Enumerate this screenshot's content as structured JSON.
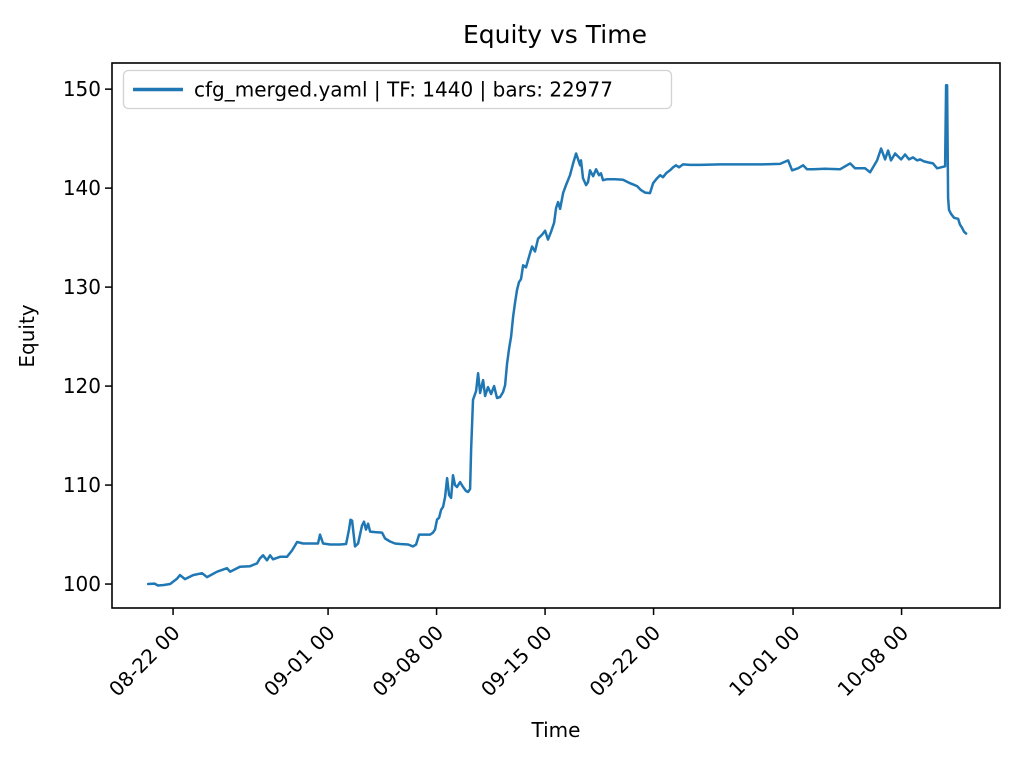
{
  "chart_data": {
    "type": "line",
    "title": "Equity vs Time",
    "xlabel": "Time",
    "ylabel": "Equity",
    "grid": false,
    "legend_position": "upper left",
    "legend": [
      {
        "label": "cfg_merged.yaml | TF: 1440 | bars: 22977",
        "color": "#1f77b4"
      }
    ],
    "colors": {
      "line": "#1f77b4",
      "spine": "#000000",
      "legend_border": "#d2d2d2",
      "background": "#ffffff"
    },
    "t_unit": "days since 08-22 00:00",
    "xlim": [
      -3.94,
      53.35
    ],
    "ylim": [
      97.58,
      152.64
    ],
    "yticks": [
      100,
      110,
      120,
      130,
      140,
      150
    ],
    "xticks": [
      {
        "t": 0,
        "label": "08-22 00"
      },
      {
        "t": 10,
        "label": "09-01 00"
      },
      {
        "t": 17,
        "label": "09-08 00"
      },
      {
        "t": 24,
        "label": "09-15 00"
      },
      {
        "t": 31,
        "label": "09-22 00"
      },
      {
        "t": 40,
        "label": "10-01 00"
      },
      {
        "t": 47,
        "label": "10-08 00"
      }
    ],
    "series": [
      {
        "name": "cfg_merged.yaml | TF: 1440 | bars: 22977",
        "color": "#1f77b4",
        "points": [
          [
            -1.61,
            100.0
          ],
          [
            -1.2,
            100.05
          ],
          [
            -0.97,
            99.85
          ],
          [
            -0.6,
            99.9
          ],
          [
            -0.19,
            100.0
          ],
          [
            0.26,
            100.55
          ],
          [
            0.45,
            100.9
          ],
          [
            0.77,
            100.5
          ],
          [
            1.29,
            100.9
          ],
          [
            1.87,
            101.1
          ],
          [
            2.19,
            100.7
          ],
          [
            2.84,
            101.25
          ],
          [
            3.48,
            101.6
          ],
          [
            3.68,
            101.25
          ],
          [
            4.32,
            101.75
          ],
          [
            4.97,
            101.8
          ],
          [
            5.42,
            102.1
          ],
          [
            5.61,
            102.6
          ],
          [
            5.81,
            102.9
          ],
          [
            6.06,
            102.4
          ],
          [
            6.26,
            102.9
          ],
          [
            6.45,
            102.5
          ],
          [
            6.9,
            102.75
          ],
          [
            7.35,
            102.75
          ],
          [
            7.68,
            103.4
          ],
          [
            8.0,
            104.25
          ],
          [
            8.39,
            104.1
          ],
          [
            8.84,
            104.1
          ],
          [
            9.35,
            104.1
          ],
          [
            9.48,
            105.0
          ],
          [
            9.68,
            104.1
          ],
          [
            10.13,
            104.0
          ],
          [
            10.77,
            104.0
          ],
          [
            11.16,
            104.05
          ],
          [
            11.35,
            105.5
          ],
          [
            11.45,
            106.5
          ],
          [
            11.55,
            106.4
          ],
          [
            11.74,
            103.8
          ],
          [
            11.94,
            104.1
          ],
          [
            12.19,
            105.9
          ],
          [
            12.32,
            106.3
          ],
          [
            12.45,
            105.5
          ],
          [
            12.58,
            106.1
          ],
          [
            12.71,
            105.3
          ],
          [
            13.03,
            105.25
          ],
          [
            13.48,
            105.2
          ],
          [
            13.68,
            104.6
          ],
          [
            14.0,
            104.3
          ],
          [
            14.32,
            104.1
          ],
          [
            14.65,
            104.05
          ],
          [
            15.16,
            104.0
          ],
          [
            15.48,
            103.8
          ],
          [
            15.68,
            104.0
          ],
          [
            15.87,
            105.0
          ],
          [
            16.19,
            105.0
          ],
          [
            16.58,
            105.0
          ],
          [
            16.77,
            105.2
          ],
          [
            16.9,
            105.5
          ],
          [
            17.03,
            106.5
          ],
          [
            17.16,
            106.7
          ],
          [
            17.29,
            107.5
          ],
          [
            17.42,
            107.8
          ],
          [
            17.55,
            108.8
          ],
          [
            17.68,
            110.7
          ],
          [
            17.81,
            109.0
          ],
          [
            17.94,
            108.7
          ],
          [
            18.06,
            111.0
          ],
          [
            18.19,
            110.0
          ],
          [
            18.32,
            109.8
          ],
          [
            18.52,
            110.3
          ],
          [
            18.71,
            109.8
          ],
          [
            18.9,
            109.4
          ],
          [
            19.03,
            109.3
          ],
          [
            19.16,
            109.6
          ],
          [
            19.23,
            113.5
          ],
          [
            19.35,
            118.6
          ],
          [
            19.55,
            119.5
          ],
          [
            19.68,
            121.3
          ],
          [
            19.81,
            119.3
          ],
          [
            20.0,
            120.6
          ],
          [
            20.13,
            119.0
          ],
          [
            20.32,
            119.9
          ],
          [
            20.52,
            119.2
          ],
          [
            20.71,
            120.0
          ],
          [
            20.9,
            118.8
          ],
          [
            21.1,
            118.9
          ],
          [
            21.29,
            119.4
          ],
          [
            21.42,
            120.1
          ],
          [
            21.55,
            122.3
          ],
          [
            21.68,
            123.8
          ],
          [
            21.81,
            125.0
          ],
          [
            21.94,
            127.0
          ],
          [
            22.06,
            128.4
          ],
          [
            22.19,
            129.7
          ],
          [
            22.32,
            130.5
          ],
          [
            22.45,
            130.8
          ],
          [
            22.58,
            132.2
          ],
          [
            22.77,
            132.0
          ],
          [
            23.03,
            133.4
          ],
          [
            23.16,
            134.1
          ],
          [
            23.35,
            133.6
          ],
          [
            23.55,
            134.9
          ],
          [
            23.81,
            135.3
          ],
          [
            24.0,
            135.7
          ],
          [
            24.19,
            134.8
          ],
          [
            24.39,
            135.6
          ],
          [
            24.58,
            136.5
          ],
          [
            24.71,
            138.0
          ],
          [
            24.84,
            138.6
          ],
          [
            24.97,
            137.9
          ],
          [
            25.16,
            139.5
          ],
          [
            25.35,
            140.3
          ],
          [
            25.61,
            141.3
          ],
          [
            25.81,
            142.5
          ],
          [
            26.0,
            143.5
          ],
          [
            26.13,
            142.9
          ],
          [
            26.26,
            142.3
          ],
          [
            26.32,
            142.8
          ],
          [
            26.45,
            141.0
          ],
          [
            26.65,
            140.3
          ],
          [
            26.77,
            140.6
          ],
          [
            26.9,
            141.8
          ],
          [
            27.1,
            141.2
          ],
          [
            27.29,
            141.9
          ],
          [
            27.48,
            141.3
          ],
          [
            27.61,
            141.5
          ],
          [
            27.74,
            140.8
          ],
          [
            28.0,
            140.9
          ],
          [
            28.52,
            140.9
          ],
          [
            29.03,
            140.85
          ],
          [
            29.48,
            140.5
          ],
          [
            29.94,
            140.2
          ],
          [
            30.19,
            139.8
          ],
          [
            30.45,
            139.55
          ],
          [
            30.77,
            139.5
          ],
          [
            30.97,
            140.5
          ],
          [
            31.23,
            141.0
          ],
          [
            31.42,
            141.3
          ],
          [
            31.61,
            141.1
          ],
          [
            31.81,
            141.5
          ],
          [
            32.06,
            141.8
          ],
          [
            32.26,
            142.1
          ],
          [
            32.45,
            142.3
          ],
          [
            32.65,
            142.1
          ],
          [
            32.9,
            142.4
          ],
          [
            33.35,
            142.35
          ],
          [
            34.0,
            142.35
          ],
          [
            35.29,
            142.4
          ],
          [
            36.58,
            142.4
          ],
          [
            37.87,
            142.4
          ],
          [
            39.16,
            142.45
          ],
          [
            39.68,
            142.8
          ],
          [
            39.94,
            141.8
          ],
          [
            40.32,
            142.0
          ],
          [
            40.65,
            142.3
          ],
          [
            40.9,
            141.9
          ],
          [
            41.29,
            141.9
          ],
          [
            42.06,
            141.95
          ],
          [
            43.03,
            141.9
          ],
          [
            43.68,
            142.5
          ],
          [
            44.0,
            142.0
          ],
          [
            44.65,
            142.0
          ],
          [
            44.97,
            141.6
          ],
          [
            45.42,
            142.8
          ],
          [
            45.68,
            144.0
          ],
          [
            45.94,
            142.9
          ],
          [
            46.13,
            143.8
          ],
          [
            46.32,
            142.8
          ],
          [
            46.58,
            143.5
          ],
          [
            46.77,
            143.2
          ],
          [
            46.97,
            142.9
          ],
          [
            47.23,
            143.4
          ],
          [
            47.48,
            142.9
          ],
          [
            47.74,
            143.1
          ],
          [
            48.0,
            142.8
          ],
          [
            48.19,
            142.9
          ],
          [
            48.45,
            142.7
          ],
          [
            48.71,
            142.6
          ],
          [
            49.03,
            142.5
          ],
          [
            49.29,
            142.0
          ],
          [
            49.55,
            142.1
          ],
          [
            49.81,
            142.2
          ],
          [
            49.87,
            150.4
          ],
          [
            49.94,
            150.4
          ],
          [
            50.0,
            139.0
          ],
          [
            50.06,
            137.8
          ],
          [
            50.19,
            137.4
          ],
          [
            50.39,
            137.0
          ],
          [
            50.65,
            136.9
          ],
          [
            50.77,
            136.3
          ],
          [
            50.9,
            136.0
          ],
          [
            51.03,
            135.6
          ],
          [
            51.16,
            135.4
          ]
        ]
      }
    ]
  }
}
